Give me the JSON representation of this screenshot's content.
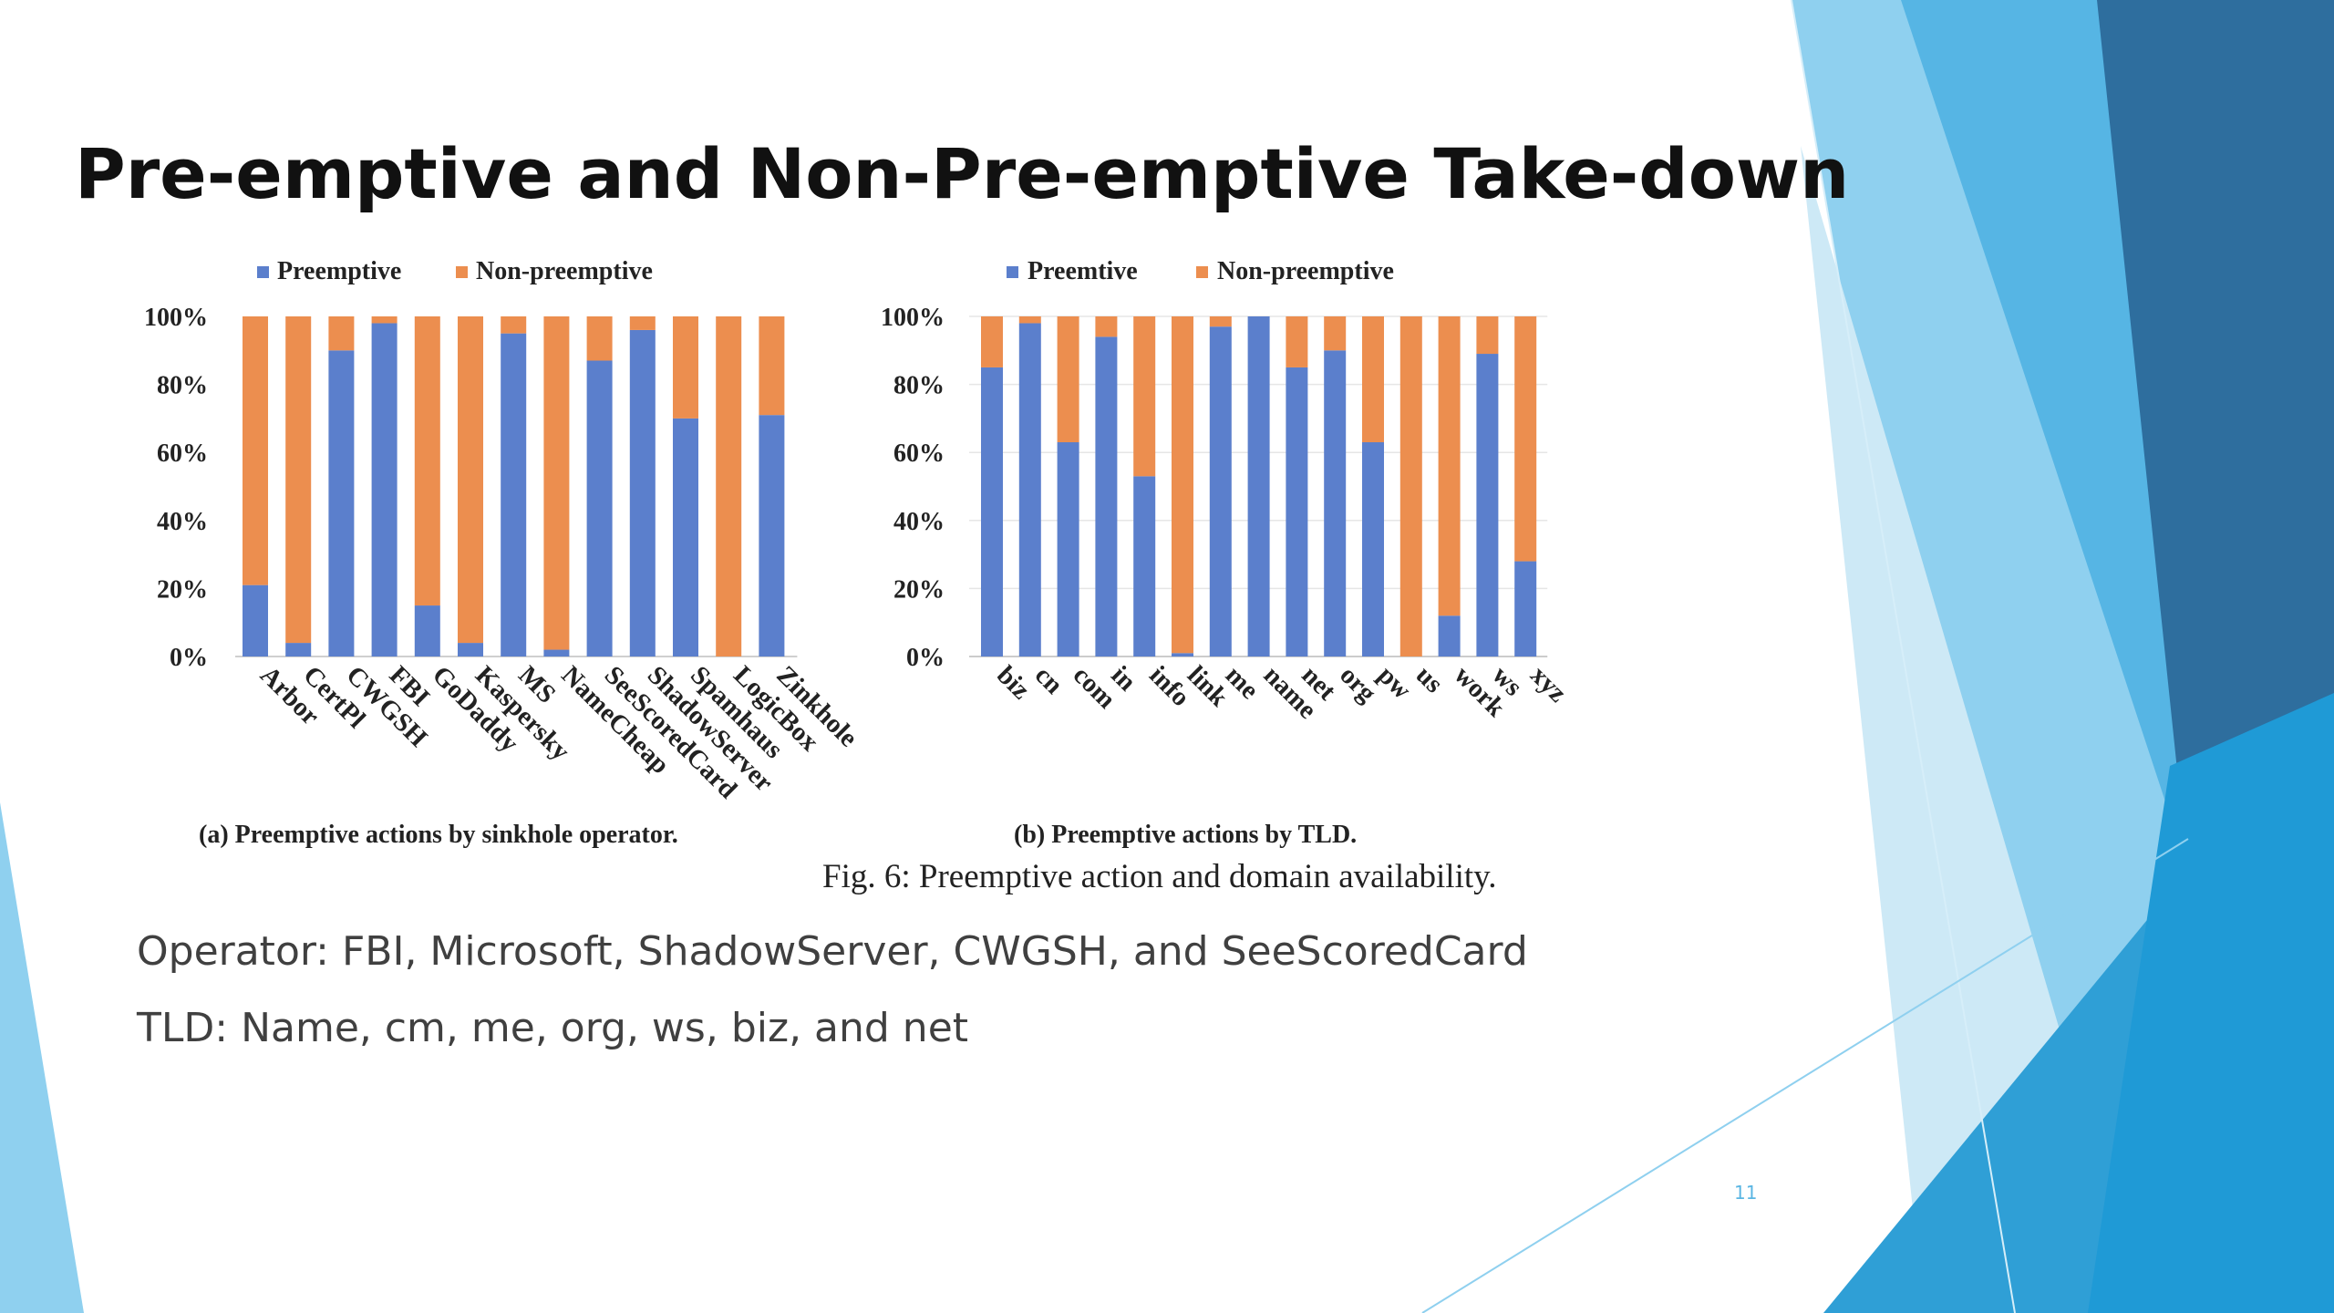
{
  "slide": {
    "title": "Pre-emptive and Non-Pre-emptive Take-down",
    "figure_caption": "Fig. 6: Preemptive action and domain availability.",
    "bullets": [
      "Operator: FBI, Microsoft, ShadowServer, CWGSH, and SeeScoredCard",
      "TLD: Name, cm, me, org, ws, biz, and net"
    ],
    "slide_number": "11"
  },
  "colors": {
    "preemptive": "#5b7fcc",
    "non_preemptive": "#ec8e4f",
    "decor_dark": "#2e6e9e",
    "decor_mid": "#2f9fd6",
    "decor_light": "#8fd0ef"
  },
  "chart_data": [
    {
      "type": "bar",
      "stacked": true,
      "caption": "(a) Preemptive actions by sinkhole operator.",
      "categories": [
        "Arbor",
        "CertPl",
        "CWGSH",
        "FBI",
        "GoDaddy",
        "Kaspersky",
        "MS",
        "NameCheap",
        "SeeScoredCard",
        "ShadowServer",
        "Spamhaus",
        "LogicBox",
        "Zinkhole"
      ],
      "series": [
        {
          "name": "Preemptive",
          "values": [
            21,
            4,
            90,
            98,
            15,
            4,
            95,
            2,
            87,
            96,
            70,
            0,
            71
          ]
        },
        {
          "name": "Non-preemptive",
          "values": [
            79,
            96,
            10,
            2,
            85,
            96,
            5,
            98,
            13,
            4,
            30,
            100,
            29
          ]
        }
      ],
      "y_ticks": [
        "0%",
        "20%",
        "40%",
        "60%",
        "80%",
        "100%"
      ],
      "ylim": [
        0,
        100
      ],
      "legend_position": "top",
      "grid": false
    },
    {
      "type": "bar",
      "stacked": true,
      "caption": "(b) Preemptive actions by TLD.",
      "categories": [
        "biz",
        "cn",
        "com",
        "in",
        "info",
        "link",
        "me",
        "name",
        "net",
        "org",
        "pw",
        "us",
        "work",
        "ws",
        "xyz"
      ],
      "series": [
        {
          "name": "Preemtive",
          "values": [
            85,
            98,
            63,
            94,
            53,
            1,
            97,
            100,
            85,
            90,
            63,
            0,
            12,
            89,
            28
          ]
        },
        {
          "name": "Non-preemptive",
          "values": [
            15,
            2,
            37,
            6,
            47,
            99,
            3,
            0,
            15,
            10,
            37,
            100,
            88,
            11,
            72
          ]
        }
      ],
      "y_ticks": [
        "0%",
        "20%",
        "40%",
        "60%",
        "80%",
        "100%"
      ],
      "ylim": [
        0,
        100
      ],
      "legend_position": "top",
      "grid": true
    }
  ]
}
